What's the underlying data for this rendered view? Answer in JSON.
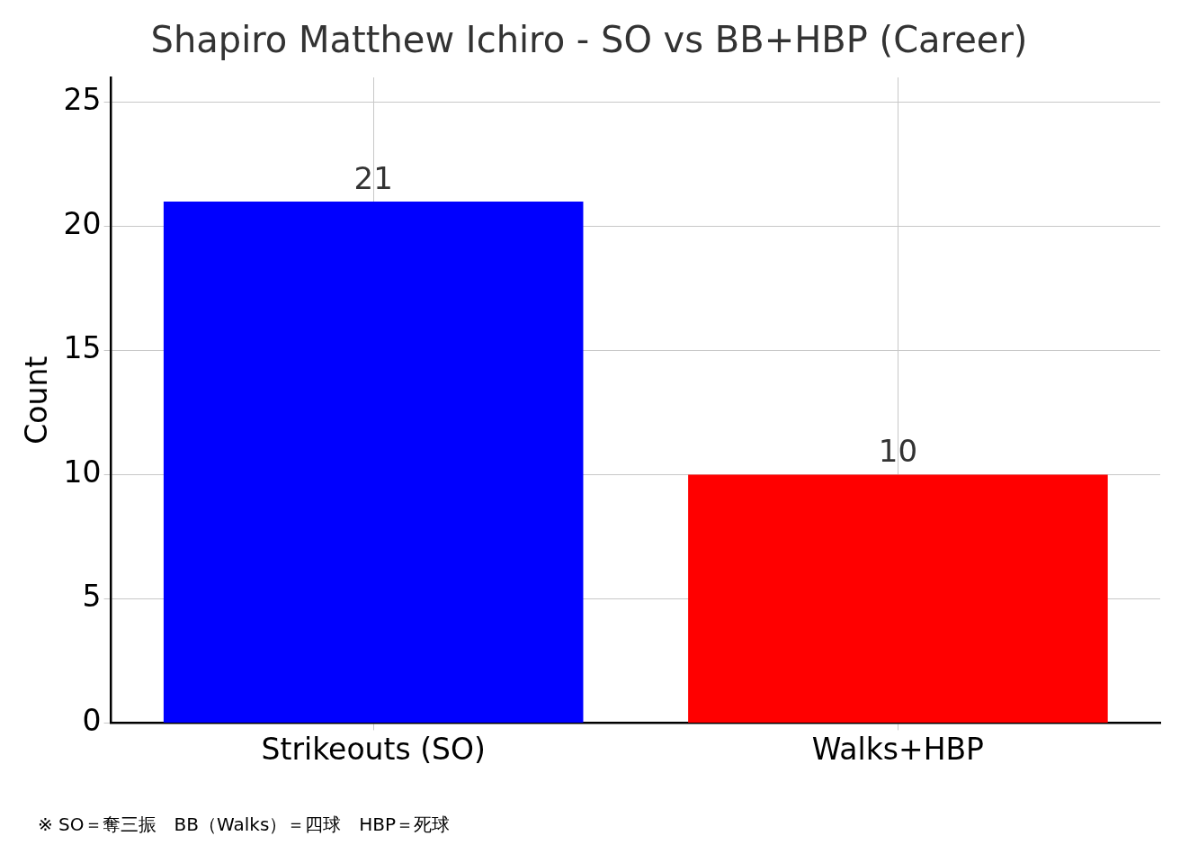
{
  "chart_data": {
    "type": "bar",
    "title": "Shapiro Matthew Ichiro - SO vs BB+HBP (Career)",
    "ylabel": "Count",
    "categories": [
      "Strikeouts (SO)",
      "Walks+HBP"
    ],
    "values": [
      21,
      10
    ],
    "colors": [
      "#0000ff",
      "#ff0000"
    ],
    "ylim": [
      0,
      26
    ],
    "yticks": [
      0,
      5,
      10,
      15,
      20,
      25
    ],
    "grid": true,
    "data_labels": true,
    "legend": false,
    "annotations": [
      "※ SO＝奪三振　BB（Walks）＝四球　HBP＝死球"
    ]
  }
}
